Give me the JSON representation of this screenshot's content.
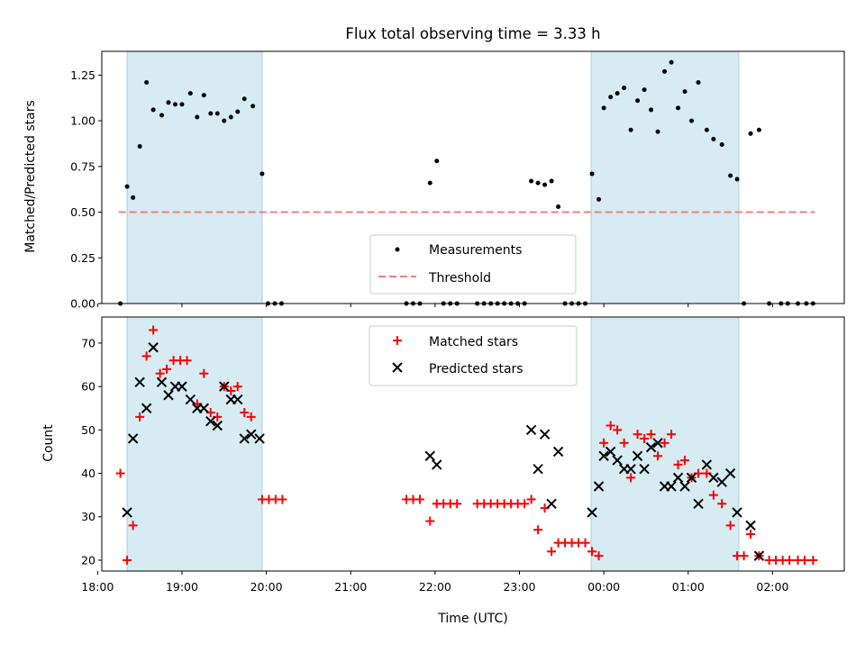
{
  "chart_data": [
    {
      "type": "scatter",
      "title": "Flux total observing time = 3.33 h",
      "ylabel": "Matched/Predicted stars",
      "xlabel": "",
      "xlim": [
        18.05,
        26.85
      ],
      "ylim": [
        0.0,
        1.38
      ],
      "yticks": [
        0.0,
        0.25,
        0.5,
        0.75,
        1.0,
        1.25
      ],
      "ytick_labels": [
        "0.00",
        "0.25",
        "0.50",
        "0.75",
        "1.00",
        "1.25"
      ],
      "shaded_intervals": [
        [
          18.35,
          19.95
        ],
        [
          23.85,
          25.6
        ]
      ],
      "threshold": {
        "value": 0.5,
        "x_range": [
          18.25,
          26.5
        ],
        "label": "Threshold",
        "color": "#f08080"
      },
      "legend": [
        "Measurements",
        "Threshold"
      ],
      "series": [
        {
          "name": "Measurements",
          "color": "#000000",
          "points": [
            [
              18.27,
              0.0
            ],
            [
              18.35,
              0.64
            ],
            [
              18.42,
              0.58
            ],
            [
              18.5,
              0.86
            ],
            [
              18.58,
              1.21
            ],
            [
              18.66,
              1.06
            ],
            [
              18.76,
              1.03
            ],
            [
              18.84,
              1.1
            ],
            [
              18.92,
              1.09
            ],
            [
              19.0,
              1.09
            ],
            [
              19.1,
              1.15
            ],
            [
              19.18,
              1.02
            ],
            [
              19.26,
              1.14
            ],
            [
              19.34,
              1.04
            ],
            [
              19.42,
              1.04
            ],
            [
              19.5,
              1.0
            ],
            [
              19.58,
              1.02
            ],
            [
              19.66,
              1.05
            ],
            [
              19.74,
              1.12
            ],
            [
              19.84,
              1.08
            ],
            [
              19.95,
              0.71
            ],
            [
              20.02,
              0.0
            ],
            [
              20.1,
              0.0
            ],
            [
              20.18,
              0.0
            ],
            [
              21.66,
              0.0
            ],
            [
              21.74,
              0.0
            ],
            [
              21.82,
              0.0
            ],
            [
              21.94,
              0.66
            ],
            [
              22.02,
              0.78
            ],
            [
              22.1,
              0.0
            ],
            [
              22.18,
              0.0
            ],
            [
              22.26,
              0.0
            ],
            [
              22.5,
              0.0
            ],
            [
              22.58,
              0.0
            ],
            [
              22.66,
              0.0
            ],
            [
              22.74,
              0.0
            ],
            [
              22.82,
              0.0
            ],
            [
              22.9,
              0.0
            ],
            [
              22.98,
              0.0
            ],
            [
              23.06,
              0.0
            ],
            [
              23.14,
              0.67
            ],
            [
              23.22,
              0.66
            ],
            [
              23.3,
              0.65
            ],
            [
              23.38,
              0.67
            ],
            [
              23.46,
              0.53
            ],
            [
              23.54,
              0.0
            ],
            [
              23.62,
              0.0
            ],
            [
              23.7,
              0.0
            ],
            [
              23.78,
              0.0
            ],
            [
              23.86,
              0.71
            ],
            [
              23.94,
              0.57
            ],
            [
              24.0,
              1.07
            ],
            [
              24.08,
              1.13
            ],
            [
              24.16,
              1.15
            ],
            [
              24.24,
              1.18
            ],
            [
              24.32,
              0.95
            ],
            [
              24.4,
              1.11
            ],
            [
              24.48,
              1.17
            ],
            [
              24.56,
              1.06
            ],
            [
              24.64,
              0.94
            ],
            [
              24.72,
              1.27
            ],
            [
              24.8,
              1.32
            ],
            [
              24.88,
              1.07
            ],
            [
              24.96,
              1.16
            ],
            [
              25.04,
              1.0
            ],
            [
              25.12,
              1.21
            ],
            [
              25.22,
              0.95
            ],
            [
              25.3,
              0.9
            ],
            [
              25.4,
              0.87
            ],
            [
              25.5,
              0.7
            ],
            [
              25.58,
              0.68
            ],
            [
              25.66,
              0.0
            ],
            [
              25.74,
              0.93
            ],
            [
              25.84,
              0.95
            ],
            [
              25.96,
              0.0
            ],
            [
              26.1,
              0.0
            ],
            [
              26.18,
              0.0
            ],
            [
              26.3,
              0.0
            ],
            [
              26.4,
              0.0
            ],
            [
              26.48,
              0.0
            ]
          ]
        }
      ]
    },
    {
      "type": "scatter",
      "title": "",
      "xlabel": "Time (UTC)",
      "ylabel": "Count",
      "xlim": [
        18.05,
        26.85
      ],
      "ylim": [
        17.5,
        76.0
      ],
      "yticks": [
        20,
        30,
        40,
        50,
        60,
        70
      ],
      "ytick_labels": [
        "20",
        "30",
        "40",
        "50",
        "60",
        "70"
      ],
      "xticks": [
        18,
        19,
        20,
        21,
        22,
        23,
        24,
        25,
        26
      ],
      "xtick_labels": [
        "18:00",
        "19:00",
        "20:00",
        "21:00",
        "22:00",
        "23:00",
        "00:00",
        "01:00",
        "02:00"
      ],
      "shaded_intervals": [
        [
          18.35,
          19.95
        ],
        [
          23.85,
          25.6
        ]
      ],
      "legend": [
        "Matched stars",
        "Predicted stars"
      ],
      "series": [
        {
          "name": "Matched stars",
          "marker": "+",
          "color": "#ff0000",
          "points": [
            [
              18.27,
              40
            ],
            [
              18.35,
              20
            ],
            [
              18.42,
              28
            ],
            [
              18.5,
              53
            ],
            [
              18.58,
              67
            ],
            [
              18.66,
              73
            ],
            [
              18.74,
              63
            ],
            [
              18.82,
              64
            ],
            [
              18.9,
              66
            ],
            [
              18.98,
              66
            ],
            [
              19.06,
              66
            ],
            [
              19.18,
              56
            ],
            [
              19.26,
              63
            ],
            [
              19.34,
              54
            ],
            [
              19.42,
              53
            ],
            [
              19.5,
              60
            ],
            [
              19.58,
              59
            ],
            [
              19.66,
              60
            ],
            [
              19.74,
              54
            ],
            [
              19.82,
              53
            ],
            [
              19.95,
              34
            ],
            [
              20.03,
              34
            ],
            [
              20.11,
              34
            ],
            [
              20.19,
              34
            ],
            [
              21.66,
              34
            ],
            [
              21.74,
              34
            ],
            [
              21.82,
              34
            ],
            [
              21.94,
              29
            ],
            [
              22.02,
              33
            ],
            [
              22.1,
              33
            ],
            [
              22.18,
              33
            ],
            [
              22.26,
              33
            ],
            [
              22.5,
              33
            ],
            [
              22.58,
              33
            ],
            [
              22.66,
              33
            ],
            [
              22.74,
              33
            ],
            [
              22.82,
              33
            ],
            [
              22.9,
              33
            ],
            [
              22.98,
              33
            ],
            [
              23.06,
              33
            ],
            [
              23.14,
              34
            ],
            [
              23.22,
              27
            ],
            [
              23.3,
              32
            ],
            [
              23.38,
              22
            ],
            [
              23.46,
              24
            ],
            [
              23.54,
              24
            ],
            [
              23.62,
              24
            ],
            [
              23.7,
              24
            ],
            [
              23.78,
              24
            ],
            [
              23.86,
              22
            ],
            [
              23.94,
              21
            ],
            [
              24.0,
              47
            ],
            [
              24.08,
              51
            ],
            [
              24.16,
              50
            ],
            [
              24.24,
              47
            ],
            [
              24.32,
              39
            ],
            [
              24.4,
              49
            ],
            [
              24.48,
              48
            ],
            [
              24.56,
              49
            ],
            [
              24.64,
              44
            ],
            [
              24.72,
              47
            ],
            [
              24.8,
              49
            ],
            [
              24.88,
              42
            ],
            [
              24.96,
              43
            ],
            [
              25.04,
              39
            ],
            [
              25.12,
              40
            ],
            [
              25.22,
              40
            ],
            [
              25.3,
              35
            ],
            [
              25.4,
              33
            ],
            [
              25.5,
              28
            ],
            [
              25.58,
              21
            ],
            [
              25.66,
              21
            ],
            [
              25.74,
              26
            ],
            [
              25.84,
              21
            ],
            [
              25.96,
              20
            ],
            [
              26.04,
              20
            ],
            [
              26.12,
              20
            ],
            [
              26.2,
              20
            ],
            [
              26.3,
              20
            ],
            [
              26.38,
              20
            ],
            [
              26.48,
              20
            ]
          ]
        },
        {
          "name": "Predicted stars",
          "marker": "x",
          "color": "#000000",
          "points": [
            [
              18.35,
              31
            ],
            [
              18.42,
              48
            ],
            [
              18.5,
              61
            ],
            [
              18.58,
              55
            ],
            [
              18.66,
              69
            ],
            [
              18.76,
              61
            ],
            [
              18.84,
              58
            ],
            [
              18.92,
              60
            ],
            [
              19.0,
              60
            ],
            [
              19.1,
              57
            ],
            [
              19.18,
              55
            ],
            [
              19.26,
              55
            ],
            [
              19.34,
              52
            ],
            [
              19.42,
              51
            ],
            [
              19.5,
              60
            ],
            [
              19.58,
              57
            ],
            [
              19.66,
              57
            ],
            [
              19.74,
              48
            ],
            [
              19.82,
              49
            ],
            [
              19.92,
              48
            ],
            [
              21.94,
              44
            ],
            [
              22.02,
              42
            ],
            [
              23.14,
              50
            ],
            [
              23.22,
              41
            ],
            [
              23.3,
              49
            ],
            [
              23.38,
              33
            ],
            [
              23.46,
              45
            ],
            [
              23.86,
              31
            ],
            [
              23.94,
              37
            ],
            [
              24.0,
              44
            ],
            [
              24.08,
              45
            ],
            [
              24.16,
              43
            ],
            [
              24.24,
              41
            ],
            [
              24.32,
              41
            ],
            [
              24.4,
              44
            ],
            [
              24.48,
              41
            ],
            [
              24.56,
              46
            ],
            [
              24.64,
              47
            ],
            [
              24.72,
              37
            ],
            [
              24.8,
              37
            ],
            [
              24.88,
              39
            ],
            [
              24.96,
              37
            ],
            [
              25.04,
              39
            ],
            [
              25.12,
              33
            ],
            [
              25.22,
              42
            ],
            [
              25.3,
              39
            ],
            [
              25.4,
              38
            ],
            [
              25.5,
              40
            ],
            [
              25.58,
              31
            ],
            [
              25.74,
              28
            ],
            [
              25.84,
              21
            ]
          ]
        }
      ]
    }
  ]
}
